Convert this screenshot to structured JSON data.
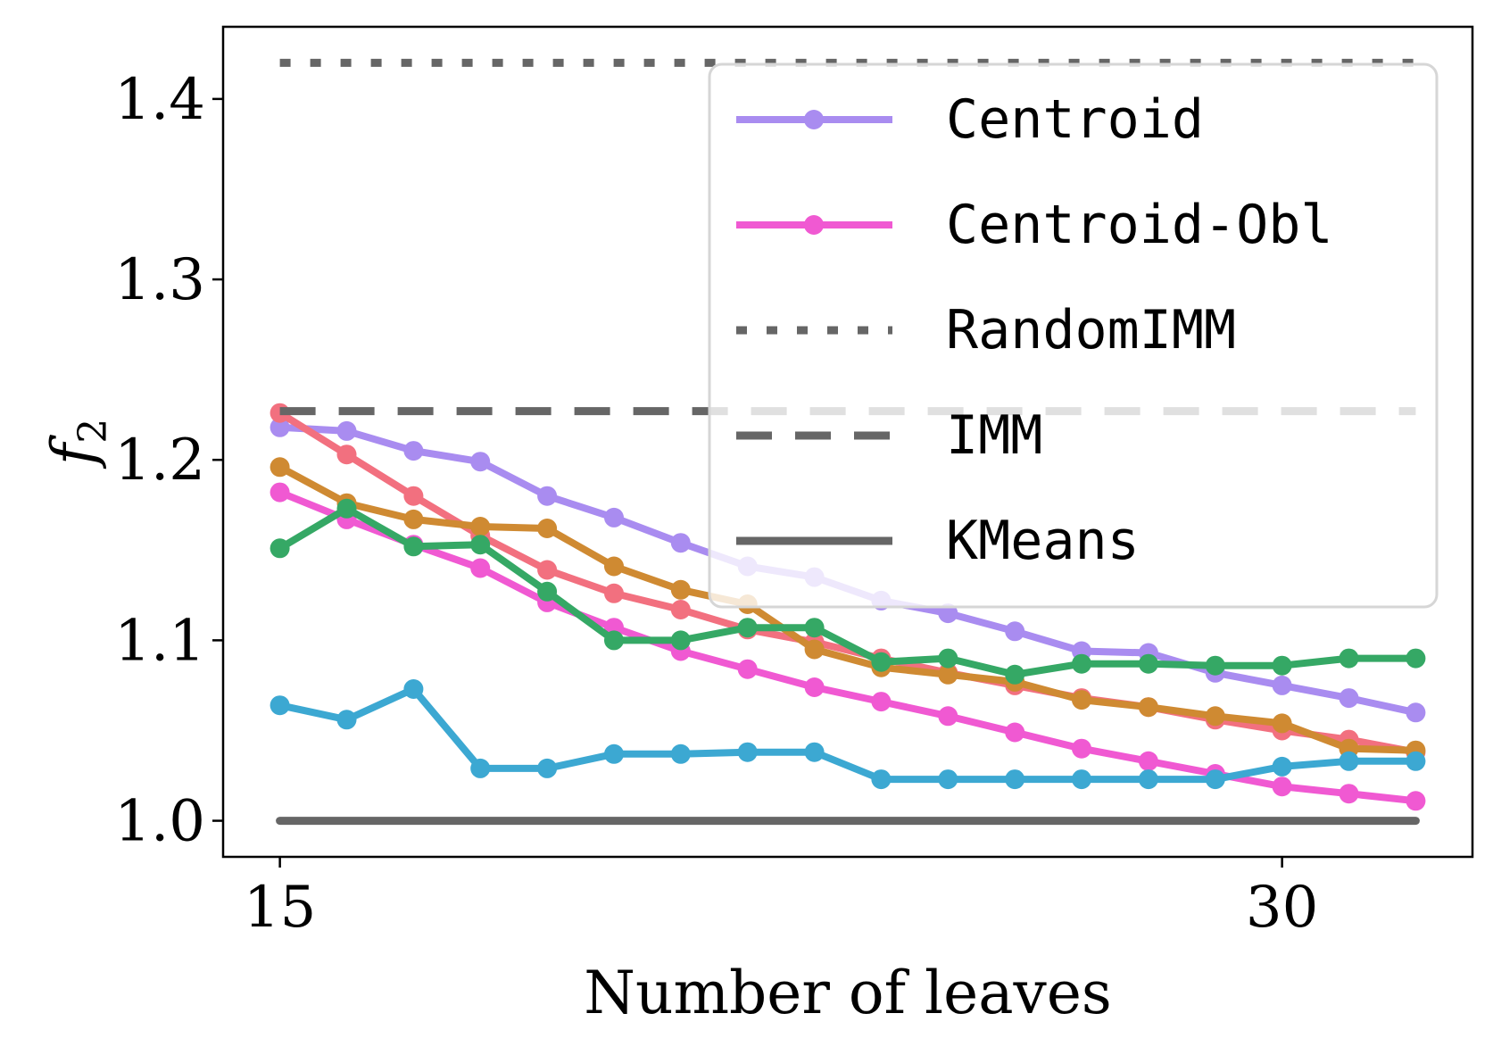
{
  "chart_data": {
    "type": "line",
    "xlabel": "Number of leaves",
    "ylabel": "f",
    "ylabel_subscript": "2",
    "xlim": [
      14.15,
      32.85
    ],
    "ylim": [
      0.98,
      1.44
    ],
    "xticks": [
      15,
      30
    ],
    "yticks": [
      1.0,
      1.1,
      1.2,
      1.3,
      1.4
    ],
    "ytick_labels": [
      "1.0",
      "1.1",
      "1.2",
      "1.3",
      "1.4"
    ],
    "xtick_labels": [
      "15",
      "30"
    ],
    "grid": false,
    "legend_position": "top-right",
    "x": [
      15,
      16,
      17,
      18,
      19,
      20,
      21,
      22,
      23,
      24,
      25,
      26,
      27,
      28,
      29,
      30,
      31,
      32
    ],
    "series": [
      {
        "name": "Centroid",
        "color": "#a98cf0",
        "style": "solid",
        "marker": true,
        "in_legend": true,
        "values": [
          1.218,
          1.216,
          1.205,
          1.199,
          1.18,
          1.168,
          1.154,
          1.141,
          1.135,
          1.122,
          1.115,
          1.105,
          1.094,
          1.093,
          1.082,
          1.075,
          1.068,
          1.06
        ]
      },
      {
        "name": "Centroid-Obl",
        "color": "#f059d2",
        "style": "solid",
        "marker": true,
        "in_legend": true,
        "values": [
          1.182,
          1.167,
          1.153,
          1.14,
          1.121,
          1.107,
          1.094,
          1.084,
          1.074,
          1.066,
          1.058,
          1.049,
          1.04,
          1.033,
          1.026,
          1.019,
          1.015,
          1.011
        ]
      },
      {
        "name": "",
        "color": "#f2707f",
        "style": "solid",
        "marker": true,
        "in_legend": false,
        "values": [
          1.226,
          1.203,
          1.18,
          1.158,
          1.139,
          1.126,
          1.117,
          1.106,
          1.099,
          1.09,
          1.082,
          1.075,
          1.068,
          1.063,
          1.056,
          1.05,
          1.045,
          1.038
        ]
      },
      {
        "name": "",
        "color": "#cf8a32",
        "style": "solid",
        "marker": true,
        "in_legend": false,
        "values": [
          1.196,
          1.176,
          1.167,
          1.163,
          1.162,
          1.141,
          1.128,
          1.12,
          1.095,
          1.085,
          1.081,
          1.077,
          1.067,
          1.063,
          1.058,
          1.054,
          1.04,
          1.039
        ]
      },
      {
        "name": "",
        "color": "#35a865",
        "style": "solid",
        "marker": true,
        "in_legend": false,
        "values": [
          1.151,
          1.173,
          1.152,
          1.153,
          1.127,
          1.1,
          1.1,
          1.107,
          1.107,
          1.088,
          1.09,
          1.081,
          1.087,
          1.087,
          1.086,
          1.086,
          1.09,
          1.09
        ]
      },
      {
        "name": "",
        "color": "#3ca8d2",
        "style": "solid",
        "marker": true,
        "in_legend": false,
        "values": [
          1.064,
          1.056,
          1.073,
          1.029,
          1.029,
          1.037,
          1.037,
          1.038,
          1.038,
          1.023,
          1.023,
          1.023,
          1.023,
          1.023,
          1.023,
          1.03,
          1.033,
          1.033
        ]
      },
      {
        "name": "RandomIMM",
        "color": "#666666",
        "style": "dotted",
        "marker": false,
        "in_legend": true,
        "x": [
          15,
          32
        ],
        "values": [
          1.42,
          1.42
        ]
      },
      {
        "name": "IMM",
        "color": "#666666",
        "style": "dashed",
        "marker": false,
        "in_legend": true,
        "x": [
          15,
          32
        ],
        "values": [
          1.227,
          1.227
        ]
      },
      {
        "name": "KMeans",
        "color": "#666666",
        "style": "solid",
        "marker": false,
        "in_legend": true,
        "x": [
          15,
          32
        ],
        "values": [
          1.0,
          1.0
        ]
      }
    ]
  }
}
